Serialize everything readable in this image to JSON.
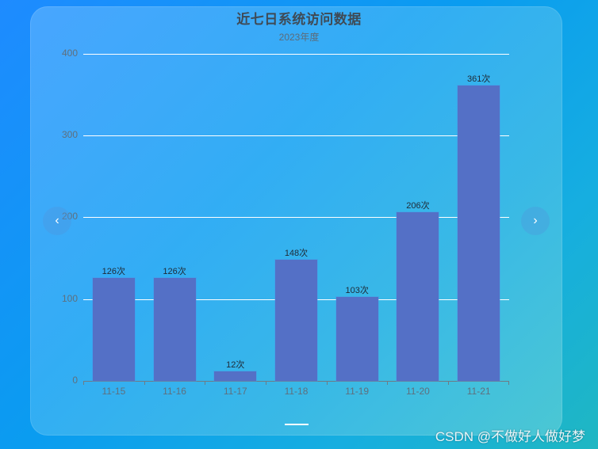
{
  "chart_data": {
    "type": "bar",
    "title": "近七日系统访问数据",
    "subtitle": "2023年度",
    "xlabel": "",
    "ylabel": "",
    "categories": [
      "11-15",
      "11-16",
      "11-17",
      "11-18",
      "11-19",
      "11-20",
      "11-21"
    ],
    "values": [
      126,
      126,
      12,
      148,
      103,
      206,
      361
    ],
    "value_labels": [
      "126次",
      "126次",
      "12次",
      "148次",
      "103次",
      "206次",
      "361次"
    ],
    "ylim": [
      0,
      400
    ],
    "yticks": [
      "0",
      "100",
      "200",
      "300",
      "400"
    ],
    "grid": true,
    "legend": null,
    "bar_color": "#5470c6"
  },
  "carousel": {
    "prev_icon": "‹",
    "next_icon": "›"
  },
  "watermark": "CSDN @不做好人做好梦"
}
